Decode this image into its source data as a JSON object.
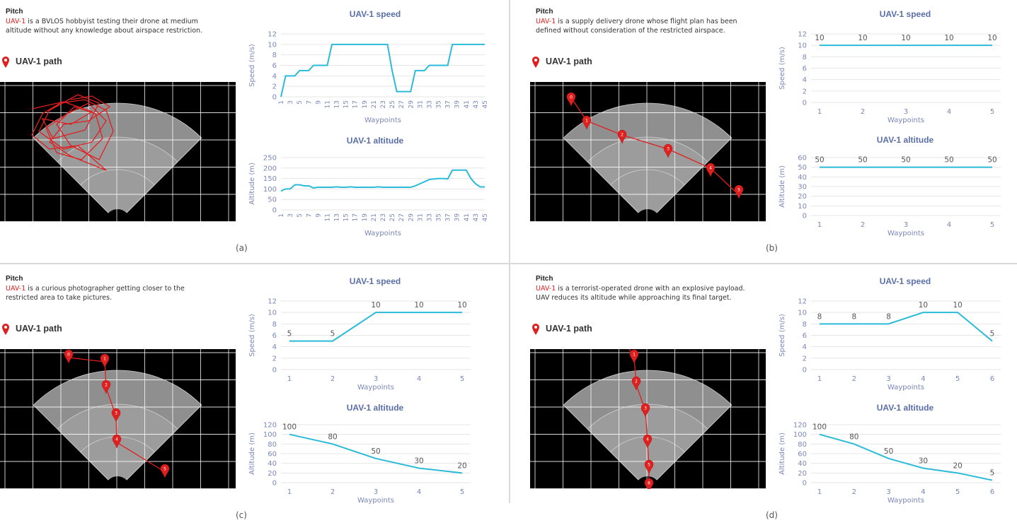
{
  "panels": [
    {
      "id": "a",
      "pitch_title": "Pitch",
      "uav_name": "UAV-1",
      "pitch_text": " is a BVLOS hobbyist testing their drone at medium altitude without any knowledge about airspace restriction.",
      "path_title": "UAV-1 path",
      "caption": "(a)"
    },
    {
      "id": "b",
      "pitch_title": "Pitch",
      "uav_name": "UAV-1",
      "pitch_text": " is a supply delivery drone whose flight plan has been defined without consideration of the restricted airspace.",
      "path_title": "UAV-1 path",
      "caption": "(b)"
    },
    {
      "id": "c",
      "pitch_title": "Pitch",
      "uav_name": "UAV-1",
      "pitch_text": " is a curious photographer getting closer to the restricted area to take pictures.",
      "path_title": "UAV-1 path",
      "caption": "(c)"
    },
    {
      "id": "d",
      "pitch_title": "Pitch",
      "uav_name": "UAV-1",
      "pitch_text": " is a terrorist-operated drone with an explosive payload. UAV reduces its altitude while approaching its final target.",
      "path_title": "UAV-1 path",
      "caption": "(d)"
    }
  ],
  "colors": {
    "series": "#2bbbd8",
    "accent": "#e01f1f",
    "title": "#5a6fa8",
    "axis_text": "#7a86b8",
    "grid": "#e6e6e6"
  },
  "paths": {
    "b": {
      "markers": [
        "0",
        "1",
        "2",
        "3",
        "4",
        "5"
      ]
    },
    "c": {
      "markers": [
        "0",
        "1",
        "2",
        "3",
        "4",
        "5"
      ]
    },
    "d": {
      "markers": [
        "1",
        "2",
        "3",
        "4",
        "5",
        "6"
      ]
    }
  },
  "chart_data": [
    {
      "id": "a-speed",
      "type": "line",
      "title": "UAV-1 speed",
      "xlabel": "Waypoints",
      "ylabel": "Speed (m/s)",
      "ylim": [
        0,
        12
      ],
      "yticks": [
        0,
        2,
        4,
        6,
        8,
        10,
        12
      ],
      "x": [
        1,
        2,
        3,
        4,
        5,
        6,
        7,
        8,
        9,
        10,
        11,
        12,
        13,
        14,
        15,
        16,
        17,
        18,
        19,
        20,
        21,
        22,
        23,
        24,
        25,
        26,
        27,
        28,
        29,
        30,
        31,
        32,
        33,
        34,
        35,
        36,
        37,
        38,
        39,
        40,
        41,
        42,
        43,
        44,
        45
      ],
      "xtick_labels": [
        "1",
        "3",
        "5",
        "7",
        "9",
        "11",
        "13",
        "15",
        "17",
        "19",
        "21",
        "23",
        "25",
        "27",
        "29",
        "31",
        "33",
        "35",
        "37",
        "39",
        "41",
        "43",
        "45"
      ],
      "values": [
        0,
        4,
        4,
        4,
        5,
        5,
        5,
        6,
        6,
        6,
        6,
        10,
        10,
        10,
        10,
        10,
        10,
        10,
        10,
        10,
        10,
        10,
        10,
        10,
        5,
        1,
        1,
        1,
        1,
        5,
        5,
        5,
        6,
        6,
        6,
        6,
        6,
        10,
        10,
        10,
        10,
        10,
        10,
        10,
        10
      ],
      "show_labels": false
    },
    {
      "id": "a-alt",
      "type": "line",
      "title": "UAV-1 altitude",
      "xlabel": "Waypoints",
      "ylabel": "Altitude (m)",
      "ylim": [
        0,
        250
      ],
      "yticks": [
        0,
        50,
        100,
        150,
        200,
        250
      ],
      "x": [
        1,
        2,
        3,
        4,
        5,
        6,
        7,
        8,
        9,
        10,
        11,
        12,
        13,
        14,
        15,
        16,
        17,
        18,
        19,
        20,
        21,
        22,
        23,
        24,
        25,
        26,
        27,
        28,
        29,
        30,
        31,
        32,
        33,
        34,
        35,
        36,
        37,
        38,
        39,
        40,
        41,
        42,
        43,
        44,
        45
      ],
      "xtick_labels": [
        "1",
        "3",
        "5",
        "7",
        "9",
        "11",
        "13",
        "15",
        "17",
        "19",
        "21",
        "23",
        "25",
        "27",
        "29",
        "31",
        "33",
        "35",
        "37",
        "39",
        "41",
        "43",
        "45"
      ],
      "values": [
        90,
        100,
        100,
        120,
        120,
        115,
        115,
        105,
        108,
        108,
        108,
        108,
        110,
        108,
        108,
        110,
        108,
        108,
        108,
        108,
        108,
        110,
        108,
        108,
        108,
        108,
        108,
        108,
        108,
        115,
        125,
        135,
        145,
        148,
        150,
        150,
        148,
        190,
        190,
        190,
        190,
        150,
        125,
        110,
        110
      ],
      "show_labels": false
    },
    {
      "id": "b-speed",
      "type": "line",
      "title": "UAV-1 speed",
      "xlabel": "Waypoints",
      "ylabel": "Speed (m/s)",
      "ylim": [
        0,
        12
      ],
      "yticks": [
        0,
        2,
        4,
        6,
        8,
        10,
        12
      ],
      "x": [
        1,
        2,
        3,
        4,
        5
      ],
      "xtick_labels": [
        "1",
        "2",
        "3",
        "4",
        "5"
      ],
      "values": [
        10,
        10,
        10,
        10,
        10
      ],
      "show_labels": true
    },
    {
      "id": "b-alt",
      "type": "line",
      "title": "UAV-1 altitude",
      "xlabel": "Waypoints",
      "ylabel": "Altitude (m)",
      "ylim": [
        0,
        60
      ],
      "yticks": [
        0,
        10,
        20,
        30,
        40,
        50,
        60
      ],
      "x": [
        1,
        2,
        3,
        4,
        5
      ],
      "xtick_labels": [
        "1",
        "2",
        "3",
        "4",
        "5"
      ],
      "values": [
        50,
        50,
        50,
        50,
        50
      ],
      "show_labels": true
    },
    {
      "id": "c-speed",
      "type": "line",
      "title": "UAV-1 speed",
      "xlabel": "Waypoints",
      "ylabel": "Speed (m/s)",
      "ylim": [
        0,
        12
      ],
      "yticks": [
        0,
        2,
        4,
        6,
        8,
        10,
        12
      ],
      "x": [
        1,
        2,
        3,
        4,
        5
      ],
      "xtick_labels": [
        "1",
        "2",
        "3",
        "4",
        "5"
      ],
      "values": [
        5,
        5,
        10,
        10,
        10
      ],
      "show_labels": true
    },
    {
      "id": "c-alt",
      "type": "line",
      "title": "UAV-1 altitude",
      "xlabel": "Waypoints",
      "ylabel": "Altitude (m)",
      "ylim": [
        0,
        120
      ],
      "yticks": [
        0,
        20,
        40,
        60,
        80,
        100,
        120
      ],
      "x": [
        1,
        2,
        3,
        4,
        5
      ],
      "xtick_labels": [
        "1",
        "2",
        "3",
        "4",
        "5"
      ],
      "values": [
        100,
        80,
        50,
        30,
        20
      ],
      "show_labels": true
    },
    {
      "id": "d-speed",
      "type": "line",
      "title": "UAV-1 speed",
      "xlabel": "Waypoints",
      "ylabel": "Speed (m/s)",
      "ylim": [
        0,
        12
      ],
      "yticks": [
        0,
        2,
        4,
        6,
        8,
        10,
        12
      ],
      "x": [
        1,
        2,
        3,
        4,
        5,
        6
      ],
      "xtick_labels": [
        "1",
        "2",
        "3",
        "4",
        "5",
        "6"
      ],
      "values": [
        8,
        8,
        8,
        10,
        10,
        5
      ],
      "show_labels": true
    },
    {
      "id": "d-alt",
      "type": "line",
      "title": "UAV-1 altitude",
      "xlabel": "Waypoints",
      "ylabel": "Altitude (m)",
      "ylim": [
        0,
        120
      ],
      "yticks": [
        0,
        20,
        40,
        60,
        80,
        100,
        120
      ],
      "x": [
        1,
        2,
        3,
        4,
        5,
        6
      ],
      "xtick_labels": [
        "1",
        "2",
        "3",
        "4",
        "5",
        "6"
      ],
      "values": [
        100,
        80,
        50,
        30,
        20,
        5
      ],
      "show_labels": true
    }
  ]
}
